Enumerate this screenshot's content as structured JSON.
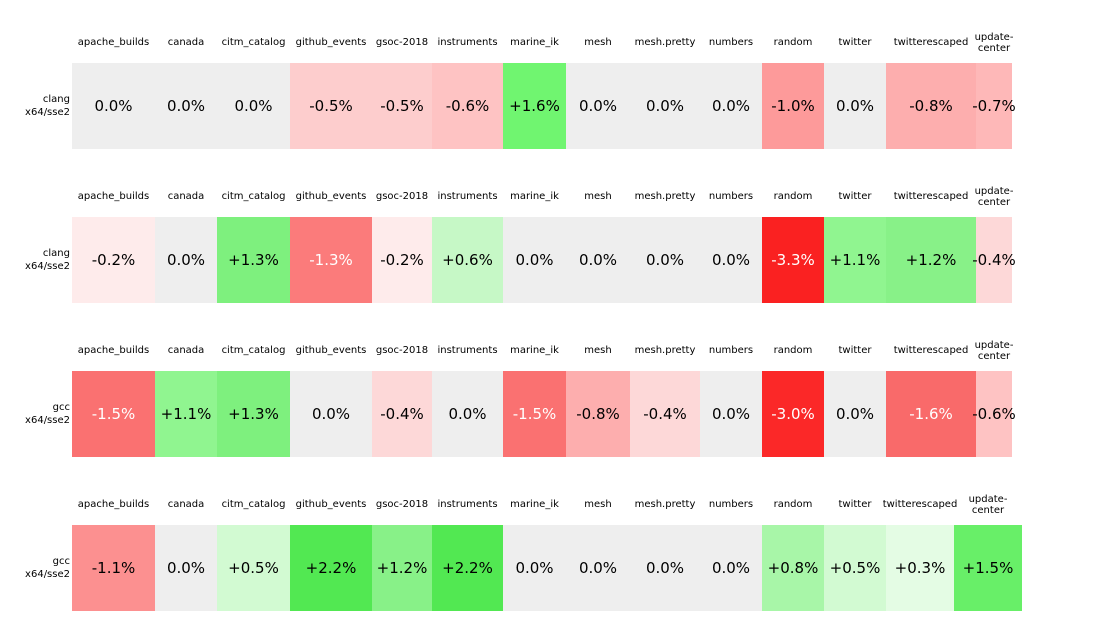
{
  "figure": {
    "background": "#ffffff",
    "zero_cell_color": "#eeeeee"
  },
  "columns": [
    "apache_builds",
    "canada",
    "citm_catalog",
    "github_events",
    "gsoc-2018",
    "instruments",
    "marine_ik",
    "mesh",
    "mesh.pretty",
    "numbers",
    "random",
    "twitter",
    "twitterescaped",
    "update-center"
  ],
  "strips": [
    {
      "label_lines": [
        "clang",
        "x64/sse2"
      ],
      "cells": [
        {
          "text": "0.0%",
          "bg": "#eeeeee",
          "fg": "#000000"
        },
        {
          "text": "0.0%",
          "bg": "#eeeeee",
          "fg": "#000000"
        },
        {
          "text": "0.0%",
          "bg": "#eeeeee",
          "fg": "#000000"
        },
        {
          "text": "-0.5%",
          "bg": "#fdcdcd",
          "fg": "#000000"
        },
        {
          "text": "-0.5%",
          "bg": "#fdcdcd",
          "fg": "#000000"
        },
        {
          "text": "-0.6%",
          "bg": "#fec3c3",
          "fg": "#000000"
        },
        {
          "text": "+1.6%",
          "bg": "#70f570",
          "fg": "#000000"
        },
        {
          "text": "0.0%",
          "bg": "#eeeeee",
          "fg": "#000000"
        },
        {
          "text": "0.0%",
          "bg": "#eeeeee",
          "fg": "#000000"
        },
        {
          "text": "0.0%",
          "bg": "#eeeeee",
          "fg": "#000000"
        },
        {
          "text": "-1.0%",
          "bg": "#fd9a9a",
          "fg": "#000000"
        },
        {
          "text": "0.0%",
          "bg": "#eeeeee",
          "fg": "#000000"
        },
        {
          "text": "-0.8%",
          "bg": "#fdaeae",
          "fg": "#000000"
        },
        {
          "text": "-0.7%",
          "bg": "#feb8b8",
          "fg": "#000000"
        }
      ]
    },
    {
      "label_lines": [
        "clang",
        "x64/sse2"
      ],
      "cells": [
        {
          "text": "-0.2%",
          "bg": "#feebeb",
          "fg": "#000000"
        },
        {
          "text": "0.0%",
          "bg": "#eeeeee",
          "fg": "#000000"
        },
        {
          "text": "+1.3%",
          "bg": "#7ef07e",
          "fg": "#000000"
        },
        {
          "text": "-1.3%",
          "bg": "#fb7b7b",
          "fg": "#ffffff"
        },
        {
          "text": "-0.2%",
          "bg": "#feebeb",
          "fg": "#000000"
        },
        {
          "text": "+0.6%",
          "bg": "#c6f8c6",
          "fg": "#000000"
        },
        {
          "text": "0.0%",
          "bg": "#eeeeee",
          "fg": "#000000"
        },
        {
          "text": "0.0%",
          "bg": "#eeeeee",
          "fg": "#000000"
        },
        {
          "text": "0.0%",
          "bg": "#eeeeee",
          "fg": "#000000"
        },
        {
          "text": "0.0%",
          "bg": "#eeeeee",
          "fg": "#000000"
        },
        {
          "text": "-3.3%",
          "bg": "#fa2121",
          "fg": "#ffffff"
        },
        {
          "text": "+1.1%",
          "bg": "#90f590",
          "fg": "#000000"
        },
        {
          "text": "+1.2%",
          "bg": "#88f188",
          "fg": "#000000"
        },
        {
          "text": "-0.4%",
          "bg": "#fdd8d8",
          "fg": "#000000"
        }
      ]
    },
    {
      "label_lines": [
        "gcc",
        "x64/sse2"
      ],
      "cells": [
        {
          "text": "-1.5%",
          "bg": "#fa7171",
          "fg": "#ffffff"
        },
        {
          "text": "+1.1%",
          "bg": "#90f590",
          "fg": "#000000"
        },
        {
          "text": "+1.3%",
          "bg": "#7ef07e",
          "fg": "#000000"
        },
        {
          "text": "0.0%",
          "bg": "#eeeeee",
          "fg": "#000000"
        },
        {
          "text": "-0.4%",
          "bg": "#fdd8d8",
          "fg": "#000000"
        },
        {
          "text": "0.0%",
          "bg": "#eeeeee",
          "fg": "#000000"
        },
        {
          "text": "-1.5%",
          "bg": "#fa7171",
          "fg": "#ffffff"
        },
        {
          "text": "-0.8%",
          "bg": "#fdaeae",
          "fg": "#000000"
        },
        {
          "text": "-0.4%",
          "bg": "#fdd8d8",
          "fg": "#000000"
        },
        {
          "text": "0.0%",
          "bg": "#eeeeee",
          "fg": "#000000"
        },
        {
          "text": "-3.0%",
          "bg": "#fb2828",
          "fg": "#ffffff"
        },
        {
          "text": "0.0%",
          "bg": "#eeeeee",
          "fg": "#000000"
        },
        {
          "text": "-1.6%",
          "bg": "#f96a6a",
          "fg": "#ffffff"
        },
        {
          "text": "-0.6%",
          "bg": "#fec3c3",
          "fg": "#000000"
        }
      ]
    },
    {
      "label_lines": [
        "gcc",
        "x64/sse2"
      ],
      "cells": [
        {
          "text": "-1.1%",
          "bg": "#fc9090",
          "fg": "#000000"
        },
        {
          "text": "0.0%",
          "bg": "#eeeeee",
          "fg": "#000000"
        },
        {
          "text": "+0.5%",
          "bg": "#d2fad2",
          "fg": "#000000"
        },
        {
          "text": "+2.2%",
          "bg": "#52e852",
          "fg": "#000000"
        },
        {
          "text": "+1.2%",
          "bg": "#88f188",
          "fg": "#000000"
        },
        {
          "text": "+2.2%",
          "bg": "#52e852",
          "fg": "#000000"
        },
        {
          "text": "0.0%",
          "bg": "#eeeeee",
          "fg": "#000000"
        },
        {
          "text": "0.0%",
          "bg": "#eeeeee",
          "fg": "#000000"
        },
        {
          "text": "0.0%",
          "bg": "#eeeeee",
          "fg": "#000000"
        },
        {
          "text": "0.0%",
          "bg": "#eeeeee",
          "fg": "#000000"
        },
        {
          "text": "+0.8%",
          "bg": "#a8f6a8",
          "fg": "#000000"
        },
        {
          "text": "+0.5%",
          "bg": "#d2fad2",
          "fg": "#000000"
        },
        {
          "text": "+0.3%",
          "bg": "#e4fce4",
          "fg": "#000000"
        },
        {
          "text": "+1.5%",
          "bg": "#68ef68",
          "fg": "#000000"
        }
      ]
    }
  ],
  "chart_data": {
    "type": "heatmap",
    "title": "",
    "columns": [
      "apache_builds",
      "canada",
      "citm_catalog",
      "github_events",
      "gsoc-2018",
      "instruments",
      "marine_ik",
      "mesh",
      "mesh.pretty",
      "numbers",
      "random",
      "twitter",
      "twitterescaped",
      "update-center"
    ],
    "rows": [
      "clang x64/sse2",
      "clang x64/sse2",
      "gcc x64/sse2",
      "gcc x64/sse2"
    ],
    "values_pct": [
      [
        0.0,
        0.0,
        0.0,
        -0.5,
        -0.5,
        -0.6,
        1.6,
        0.0,
        0.0,
        0.0,
        -1.0,
        0.0,
        -0.8,
        -0.7
      ],
      [
        -0.2,
        0.0,
        1.3,
        -1.3,
        -0.2,
        0.6,
        0.0,
        0.0,
        0.0,
        0.0,
        -3.3,
        1.1,
        1.2,
        -0.4
      ],
      [
        -1.5,
        1.1,
        1.3,
        0.0,
        -0.4,
        0.0,
        -1.5,
        -0.8,
        -0.4,
        0.0,
        -3.0,
        0.0,
        -1.6,
        -0.6
      ],
      [
        -1.1,
        0.0,
        0.5,
        2.2,
        1.2,
        2.2,
        0.0,
        0.0,
        0.0,
        0.0,
        0.8,
        0.5,
        0.3,
        1.5
      ]
    ],
    "value_format": "signed percent with one decimal, zero shown as 0.0%",
    "color_scale": {
      "negative_strong": "#fa2121",
      "negative_weak": "#feebeb",
      "zero": "#eeeeee",
      "positive_weak": "#e4fce4",
      "positive_strong": "#52e852"
    },
    "legend": "none",
    "grid": "off"
  }
}
